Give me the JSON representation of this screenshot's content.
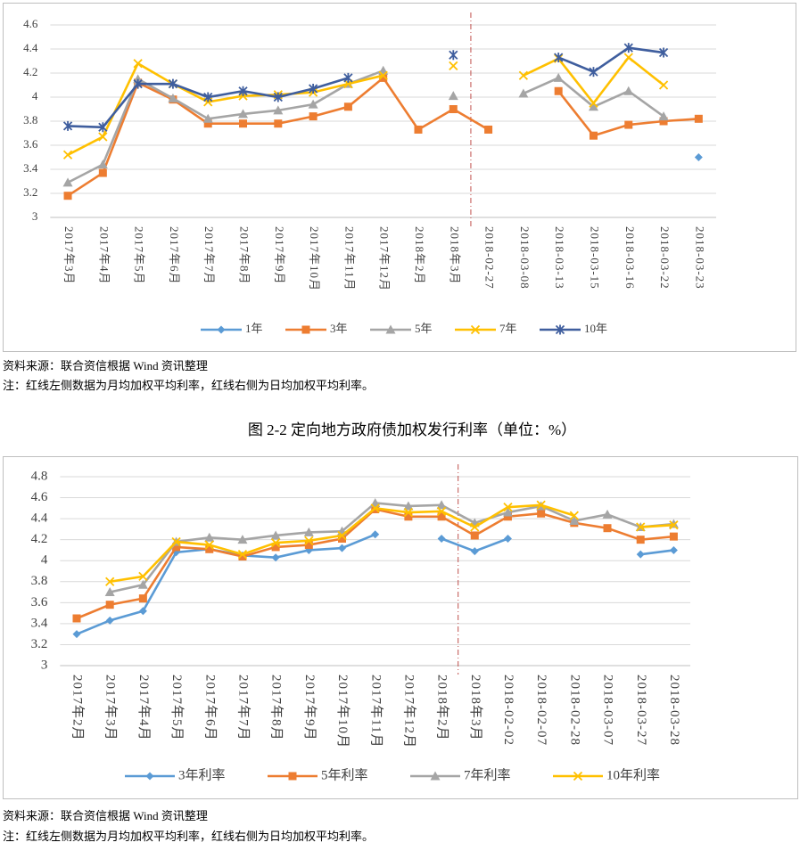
{
  "chart_data": [
    {
      "type": "line",
      "categories": [
        "2017年3月",
        "2017年4月",
        "2017年5月",
        "2017年6月",
        "2017年7月",
        "2017年8月",
        "2017年9月",
        "2017年10月",
        "2017年11月",
        "2017年12月",
        "2018年2月",
        "2018年3月",
        "2018-02-27",
        "2018-03-08",
        "2018-03-13",
        "2018-03-15",
        "2018-03-16",
        "2018-03-22",
        "2018-03-23"
      ],
      "series": [
        {
          "name": "1年",
          "color": "#5b9bd5",
          "marker": "diamond",
          "values": [
            null,
            null,
            null,
            null,
            null,
            null,
            null,
            null,
            null,
            null,
            null,
            null,
            null,
            null,
            null,
            null,
            null,
            null,
            3.5
          ]
        },
        {
          "name": "3年",
          "color": "#ed7d31",
          "marker": "square",
          "values": [
            3.18,
            3.37,
            4.12,
            3.98,
            3.78,
            3.78,
            3.78,
            3.84,
            3.92,
            4.16,
            3.73,
            3.9,
            3.73,
            null,
            4.05,
            3.68,
            3.77,
            3.8,
            3.82
          ]
        },
        {
          "name": "5年",
          "color": "#a5a5a5",
          "marker": "triangle",
          "values": [
            3.29,
            3.44,
            4.15,
            3.99,
            3.82,
            3.86,
            3.89,
            3.94,
            4.11,
            4.22,
            null,
            4.01,
            null,
            4.03,
            4.16,
            3.92,
            4.05,
            3.84,
            null
          ]
        },
        {
          "name": "7年",
          "color": "#ffc000",
          "marker": "x",
          "values": [
            3.52,
            3.67,
            4.28,
            4.11,
            3.96,
            4.01,
            4.02,
            4.04,
            4.11,
            4.18,
            null,
            4.26,
            null,
            4.18,
            4.32,
            3.95,
            4.33,
            4.1,
            null
          ]
        },
        {
          "name": "10年",
          "color": "#3f5e9e",
          "marker": "star",
          "values": [
            3.76,
            3.75,
            4.11,
            4.11,
            4.0,
            4.05,
            4.0,
            4.07,
            4.16,
            null,
            null,
            4.35,
            null,
            null,
            4.33,
            4.21,
            4.41,
            4.37,
            null
          ]
        }
      ],
      "ylim": [
        3,
        4.6
      ],
      "yticks": [
        3,
        3.2,
        3.4,
        3.6,
        3.8,
        4,
        4.2,
        4.4,
        4.6
      ],
      "grid": true,
      "legend": "bottom"
    },
    {
      "type": "line",
      "categories": [
        "2017年2月",
        "2017年3月",
        "2017年4月",
        "2017年5月",
        "2017年6月",
        "2017年7月",
        "2017年8月",
        "2017年9月",
        "2017年10月",
        "2017年11月",
        "2017年12月",
        "2018年2月",
        "2018年3月",
        "2018-02-02",
        "2018-02-07",
        "2018-02-28",
        "2018-03-07",
        "2018-03-27",
        "2018-03-28"
      ],
      "series": [
        {
          "name": "3年利率",
          "color": "#5b9bd5",
          "marker": "diamond",
          "values": [
            3.3,
            3.43,
            3.52,
            4.08,
            4.11,
            4.05,
            4.03,
            4.1,
            4.12,
            4.25,
            null,
            4.21,
            4.09,
            4.21,
            null,
            null,
            null,
            4.06,
            4.1
          ]
        },
        {
          "name": "5年利率",
          "color": "#ed7d31",
          "marker": "square",
          "values": [
            3.45,
            3.58,
            3.64,
            4.13,
            4.11,
            4.04,
            4.13,
            4.15,
            4.21,
            4.49,
            4.42,
            4.42,
            4.24,
            4.42,
            4.45,
            4.36,
            4.31,
            4.2,
            4.23
          ]
        },
        {
          "name": "7年利率",
          "color": "#a5a5a5",
          "marker": "triangle",
          "values": [
            null,
            3.7,
            3.77,
            4.18,
            4.22,
            4.2,
            4.24,
            4.27,
            4.28,
            4.55,
            4.52,
            4.53,
            4.36,
            4.46,
            4.52,
            4.38,
            4.44,
            4.32,
            4.35
          ]
        },
        {
          "name": "10年利率",
          "color": "#ffc000",
          "marker": "x",
          "values": [
            null,
            3.8,
            3.85,
            4.18,
            4.15,
            4.06,
            4.17,
            4.19,
            4.24,
            4.5,
            4.46,
            4.47,
            4.32,
            4.51,
            4.53,
            4.43,
            null,
            4.32,
            4.34
          ]
        }
      ],
      "ylim": [
        3,
        4.8
      ],
      "yticks": [
        3,
        3.2,
        3.4,
        3.6,
        3.8,
        4,
        4.2,
        4.4,
        4.6,
        4.8
      ],
      "grid": true,
      "legend": "bottom"
    }
  ],
  "notes": [
    {
      "source": "资料来源：联合资信根据 Wind 资讯整理",
      "note": "注：红线左侧数据为月均加权平均利率，红线右侧为日均加权平均利率。"
    },
    {
      "source": "资料来源：联合资信根据 Wind 资讯整理",
      "note": "注：红线左侧数据为月均加权平均利率，红线右侧为日均加权平均利率。"
    }
  ],
  "caption": "图 2-2  定向地方政府债加权发行利率（单位：%）"
}
